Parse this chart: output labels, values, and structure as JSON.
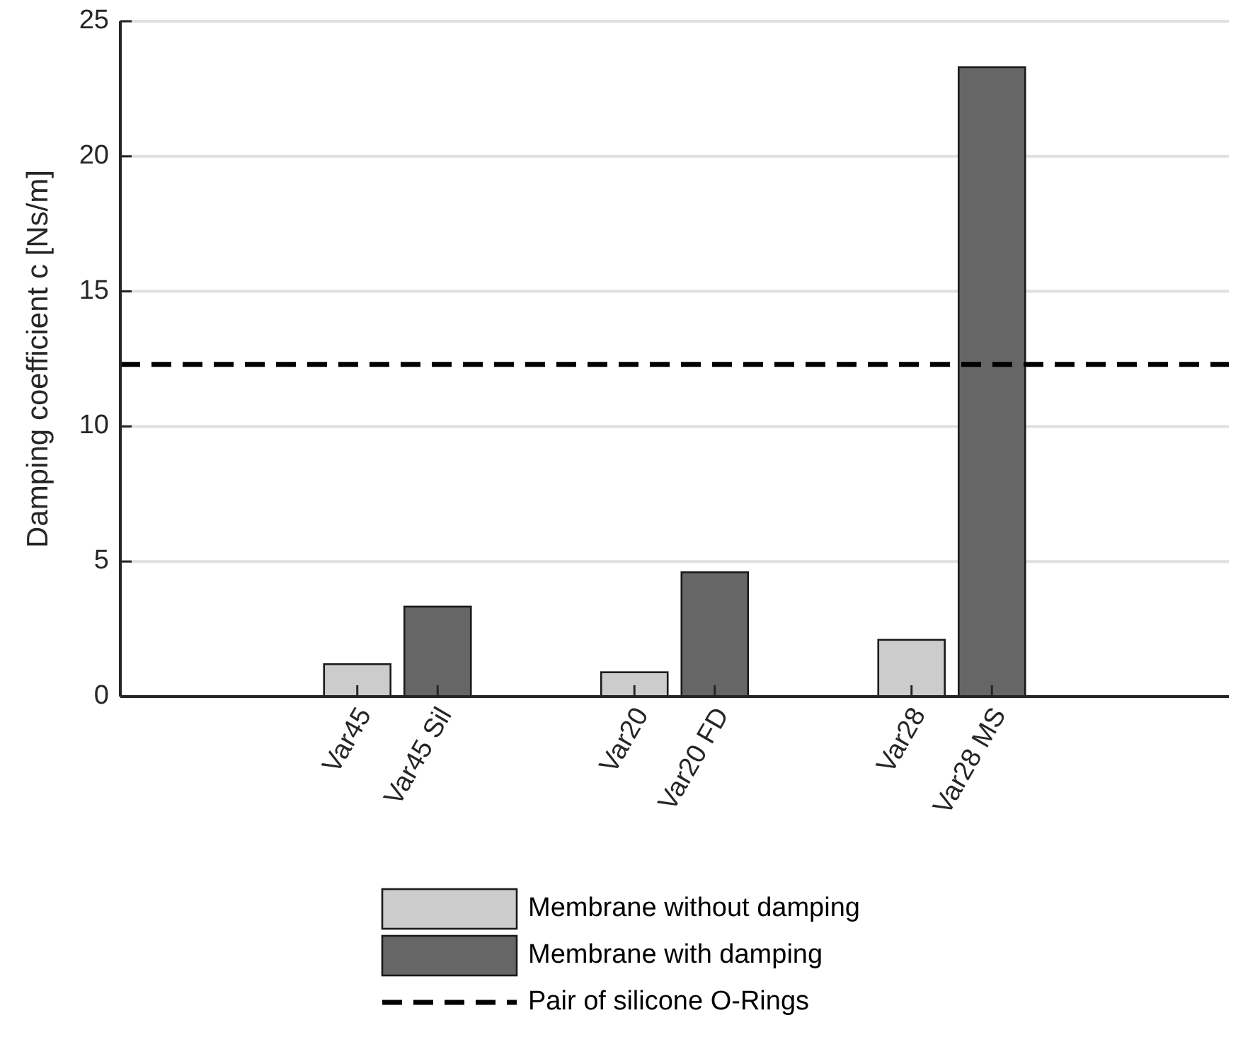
{
  "chart_data": {
    "type": "bar",
    "ylabel": "Damping coefficient c [Ns/m]",
    "categories": [
      "Var45",
      "Var45 Sil",
      "Var20",
      "Var20 FD",
      "Var28",
      "Var28 MS"
    ],
    "series": [
      {
        "name": "Membrane without damping",
        "color": "#cccccc",
        "values": [
          1.2,
          null,
          0.9,
          null,
          2.1,
          null
        ]
      },
      {
        "name": "Membrane with damping",
        "color": "#666666",
        "values": [
          null,
          3.33,
          null,
          4.6,
          null,
          23.3
        ]
      }
    ],
    "ref_lines": [
      {
        "axis": "y",
        "value": 12.3,
        "label": "Pair of silicone O-Rings",
        "color": "#000000",
        "line_style": "dashed"
      }
    ],
    "ylim": [
      0,
      25
    ],
    "yticks": [
      0,
      5,
      10,
      15,
      20,
      25
    ],
    "grid": "y",
    "legend": "bottom"
  }
}
